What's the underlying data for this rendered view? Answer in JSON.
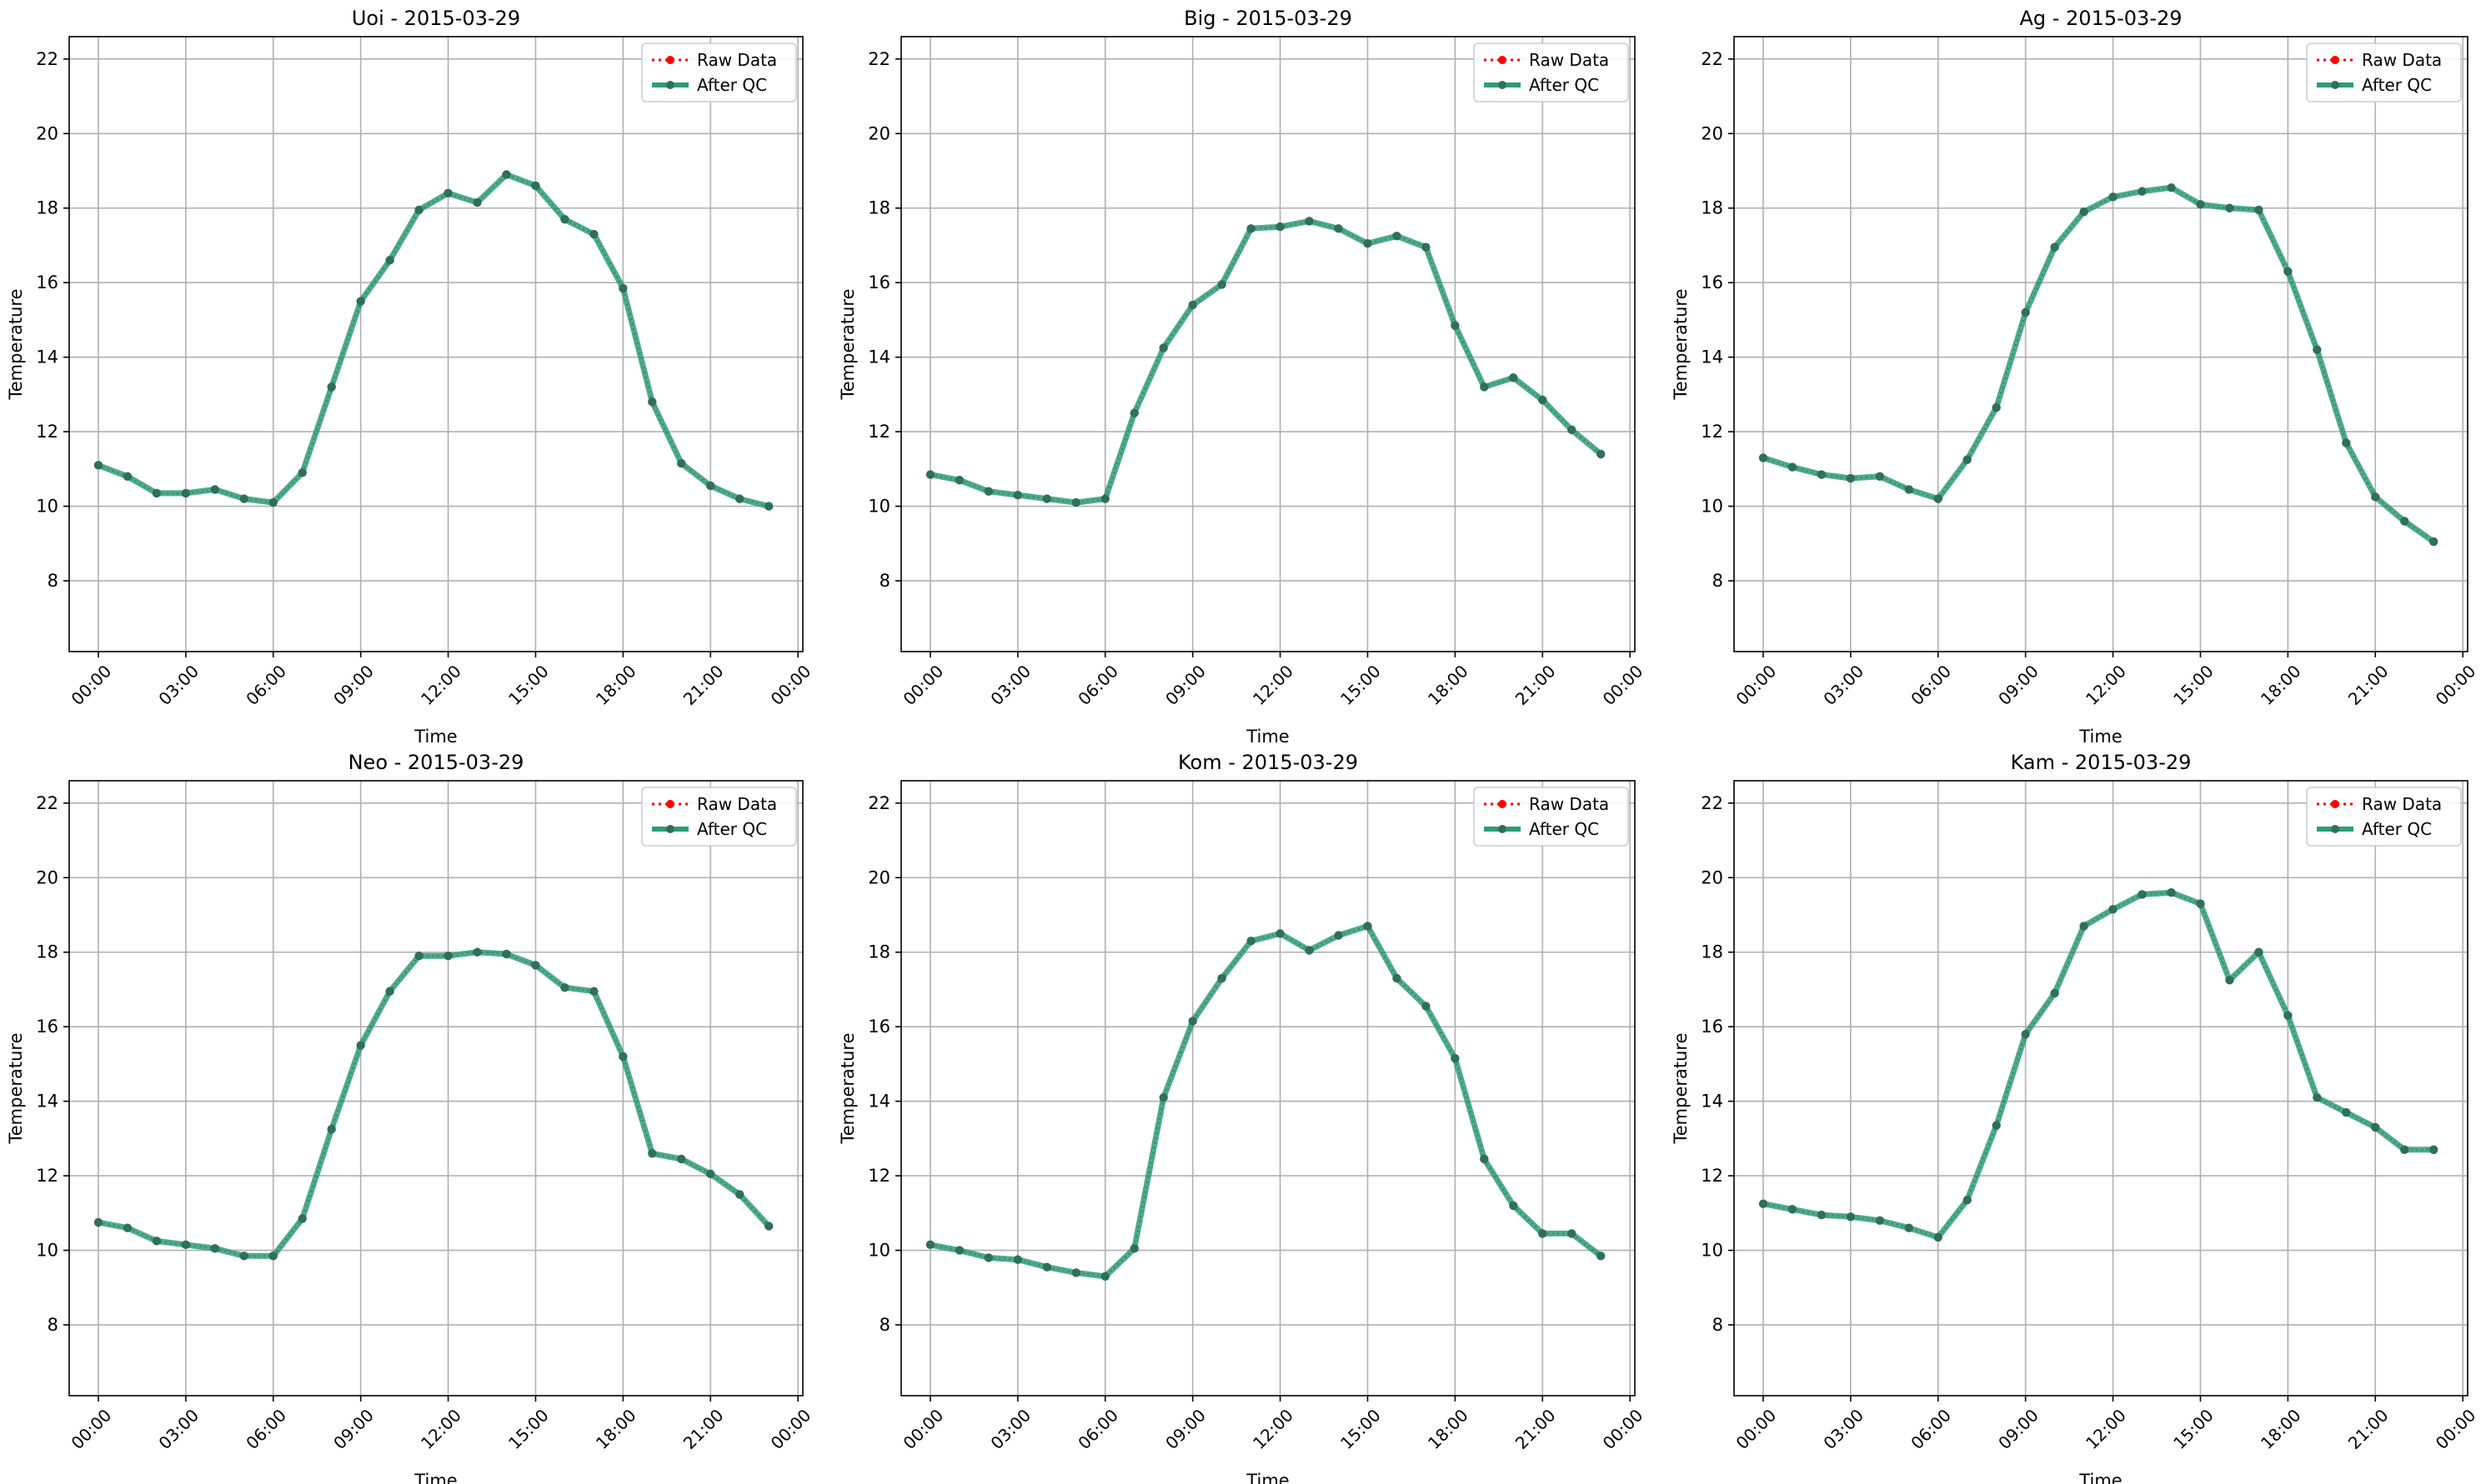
{
  "colors": {
    "raw": "#ff0000",
    "qc": "#2a9d78",
    "grid": "#b0b0b0",
    "axis": "#000000",
    "background": "#ffffff",
    "legend_border": "#cccccc"
  },
  "chart_data": [
    {
      "type": "line",
      "title": "Uoi - 2015-03-29",
      "xlabel": "Time",
      "ylabel": "Temperature",
      "xlim": [
        "2015-03-28 23:00",
        "2015-03-30 00:10"
      ],
      "ylim": [
        6.1,
        22.6
      ],
      "xtick_labels": [
        "00:00",
        "03:00",
        "06:00",
        "09:00",
        "12:00",
        "15:00",
        "18:00",
        "21:00",
        "00:00"
      ],
      "ytick_labels": [
        "8",
        "10",
        "12",
        "14",
        "16",
        "18",
        "20",
        "22"
      ],
      "grid": true,
      "legend": "top-right",
      "x": [
        "00:00",
        "01:00",
        "02:00",
        "03:00",
        "04:00",
        "05:00",
        "06:00",
        "07:00",
        "08:00",
        "09:00",
        "10:00",
        "11:00",
        "12:00",
        "13:00",
        "14:00",
        "15:00",
        "16:00",
        "17:00",
        "18:00",
        "19:00",
        "20:00",
        "21:00",
        "22:00",
        "23:00"
      ],
      "series": [
        {
          "name": "Raw Data",
          "values": [
            11.1,
            10.8,
            10.35,
            10.35,
            10.45,
            10.2,
            10.1,
            10.9,
            13.2,
            15.5,
            16.6,
            17.95,
            18.4,
            18.15,
            18.9,
            18.6,
            17.7,
            17.3,
            15.85,
            12.8,
            11.15,
            10.55,
            10.2,
            10.0
          ]
        },
        {
          "name": "After QC",
          "values": [
            11.1,
            10.8,
            10.35,
            10.35,
            10.45,
            10.2,
            10.1,
            10.9,
            13.2,
            15.5,
            16.6,
            17.95,
            18.4,
            18.15,
            18.9,
            18.6,
            17.7,
            17.3,
            15.85,
            12.8,
            11.15,
            10.55,
            10.2,
            10.0
          ]
        }
      ]
    },
    {
      "type": "line",
      "title": "Big - 2015-03-29",
      "xlabel": "Time",
      "ylabel": "Temperature",
      "xlim": [
        "2015-03-28 23:00",
        "2015-03-30 00:10"
      ],
      "ylim": [
        6.1,
        22.6
      ],
      "xtick_labels": [
        "00:00",
        "03:00",
        "06:00",
        "09:00",
        "12:00",
        "15:00",
        "18:00",
        "21:00",
        "00:00"
      ],
      "ytick_labels": [
        "8",
        "10",
        "12",
        "14",
        "16",
        "18",
        "20",
        "22"
      ],
      "grid": true,
      "legend": "top-right",
      "x": [
        "00:00",
        "01:00",
        "02:00",
        "03:00",
        "04:00",
        "05:00",
        "06:00",
        "07:00",
        "08:00",
        "09:00",
        "10:00",
        "11:00",
        "12:00",
        "13:00",
        "14:00",
        "15:00",
        "16:00",
        "17:00",
        "18:00",
        "19:00",
        "20:00",
        "21:00",
        "22:00",
        "23:00"
      ],
      "series": [
        {
          "name": "Raw Data",
          "values": [
            10.85,
            10.7,
            10.4,
            10.3,
            10.2,
            10.1,
            10.2,
            12.5,
            14.25,
            15.4,
            15.95,
            17.45,
            17.5,
            17.65,
            17.45,
            17.05,
            17.25,
            16.95,
            14.85,
            13.2,
            13.45,
            12.85,
            12.05,
            11.4
          ]
        },
        {
          "name": "After QC",
          "values": [
            10.85,
            10.7,
            10.4,
            10.3,
            10.2,
            10.1,
            10.2,
            12.5,
            14.25,
            15.4,
            15.95,
            17.45,
            17.5,
            17.65,
            17.45,
            17.05,
            17.25,
            16.95,
            14.85,
            13.2,
            13.45,
            12.85,
            12.05,
            11.4
          ]
        }
      ]
    },
    {
      "type": "line",
      "title": "Ag - 2015-03-29",
      "xlabel": "Time",
      "ylabel": "Temperature",
      "xlim": [
        "2015-03-28 23:00",
        "2015-03-30 00:10"
      ],
      "ylim": [
        6.1,
        22.6
      ],
      "xtick_labels": [
        "00:00",
        "03:00",
        "06:00",
        "09:00",
        "12:00",
        "15:00",
        "18:00",
        "21:00",
        "00:00"
      ],
      "ytick_labels": [
        "8",
        "10",
        "12",
        "14",
        "16",
        "18",
        "20",
        "22"
      ],
      "grid": true,
      "legend": "top-right",
      "x": [
        "00:00",
        "01:00",
        "02:00",
        "03:00",
        "04:00",
        "05:00",
        "06:00",
        "07:00",
        "08:00",
        "09:00",
        "10:00",
        "11:00",
        "12:00",
        "13:00",
        "14:00",
        "15:00",
        "16:00",
        "17:00",
        "18:00",
        "19:00",
        "20:00",
        "21:00",
        "22:00",
        "23:00"
      ],
      "series": [
        {
          "name": "Raw Data",
          "values": [
            11.3,
            11.05,
            10.85,
            10.75,
            10.8,
            10.45,
            10.2,
            11.25,
            12.65,
            15.2,
            16.95,
            17.9,
            18.3,
            18.45,
            18.55,
            18.1,
            18.0,
            17.95,
            16.3,
            14.2,
            11.7,
            10.25,
            9.6,
            9.05
          ]
        },
        {
          "name": "After QC",
          "values": [
            11.3,
            11.05,
            10.85,
            10.75,
            10.8,
            10.45,
            10.2,
            11.25,
            12.65,
            15.2,
            16.95,
            17.9,
            18.3,
            18.45,
            18.55,
            18.1,
            18.0,
            17.95,
            16.3,
            14.2,
            11.7,
            10.25,
            9.6,
            9.05
          ]
        }
      ]
    },
    {
      "type": "line",
      "title": "Neo - 2015-03-29",
      "xlabel": "Time",
      "ylabel": "Temperature",
      "xlim": [
        "2015-03-28 23:00",
        "2015-03-30 00:10"
      ],
      "ylim": [
        6.1,
        22.6
      ],
      "xtick_labels": [
        "00:00",
        "03:00",
        "06:00",
        "09:00",
        "12:00",
        "15:00",
        "18:00",
        "21:00",
        "00:00"
      ],
      "ytick_labels": [
        "8",
        "10",
        "12",
        "14",
        "16",
        "18",
        "20",
        "22"
      ],
      "grid": true,
      "legend": "top-right",
      "x": [
        "00:00",
        "01:00",
        "02:00",
        "03:00",
        "04:00",
        "05:00",
        "06:00",
        "07:00",
        "08:00",
        "09:00",
        "10:00",
        "11:00",
        "12:00",
        "13:00",
        "14:00",
        "15:00",
        "16:00",
        "17:00",
        "18:00",
        "19:00",
        "20:00",
        "21:00",
        "22:00",
        "23:00"
      ],
      "series": [
        {
          "name": "Raw Data",
          "values": [
            10.75,
            10.6,
            10.25,
            10.15,
            10.05,
            9.85,
            9.85,
            10.85,
            13.25,
            15.5,
            16.95,
            17.9,
            17.9,
            18.0,
            17.95,
            17.65,
            17.05,
            16.95,
            15.2,
            12.6,
            12.45,
            12.05,
            11.5,
            10.65
          ]
        },
        {
          "name": "After QC",
          "values": [
            10.75,
            10.6,
            10.25,
            10.15,
            10.05,
            9.85,
            9.85,
            10.85,
            13.25,
            15.5,
            16.95,
            17.9,
            17.9,
            18.0,
            17.95,
            17.65,
            17.05,
            16.95,
            15.2,
            12.6,
            12.45,
            12.05,
            11.5,
            10.65
          ]
        }
      ]
    },
    {
      "type": "line",
      "title": "Kom - 2015-03-29",
      "xlabel": "Time",
      "ylabel": "Temperature",
      "xlim": [
        "2015-03-28 23:00",
        "2015-03-30 00:10"
      ],
      "ylim": [
        6.1,
        22.6
      ],
      "xtick_labels": [
        "00:00",
        "03:00",
        "06:00",
        "09:00",
        "12:00",
        "15:00",
        "18:00",
        "21:00",
        "00:00"
      ],
      "ytick_labels": [
        "8",
        "10",
        "12",
        "14",
        "16",
        "18",
        "20",
        "22"
      ],
      "grid": true,
      "legend": "top-right",
      "x": [
        "00:00",
        "01:00",
        "02:00",
        "03:00",
        "04:00",
        "05:00",
        "06:00",
        "07:00",
        "08:00",
        "09:00",
        "10:00",
        "11:00",
        "12:00",
        "13:00",
        "14:00",
        "15:00",
        "16:00",
        "17:00",
        "18:00",
        "19:00",
        "20:00",
        "21:00",
        "22:00",
        "23:00"
      ],
      "series": [
        {
          "name": "Raw Data",
          "values": [
            10.15,
            10.0,
            9.8,
            9.75,
            9.55,
            9.4,
            9.3,
            10.05,
            14.1,
            16.15,
            17.3,
            18.3,
            18.5,
            18.05,
            18.45,
            18.7,
            17.3,
            16.55,
            15.15,
            12.45,
            11.2,
            10.45,
            10.45,
            9.85
          ]
        },
        {
          "name": "After QC",
          "values": [
            10.15,
            10.0,
            9.8,
            9.75,
            9.55,
            9.4,
            9.3,
            10.05,
            14.1,
            16.15,
            17.3,
            18.3,
            18.5,
            18.05,
            18.45,
            18.7,
            17.3,
            16.55,
            15.15,
            12.45,
            11.2,
            10.45,
            10.45,
            9.85
          ]
        }
      ]
    },
    {
      "type": "line",
      "title": "Kam - 2015-03-29",
      "xlabel": "Time",
      "ylabel": "Temperature",
      "xlim": [
        "2015-03-28 23:00",
        "2015-03-30 00:10"
      ],
      "ylim": [
        6.1,
        22.6
      ],
      "xtick_labels": [
        "00:00",
        "03:00",
        "06:00",
        "09:00",
        "12:00",
        "15:00",
        "18:00",
        "21:00",
        "00:00"
      ],
      "ytick_labels": [
        "8",
        "10",
        "12",
        "14",
        "16",
        "18",
        "20",
        "22"
      ],
      "grid": true,
      "legend": "top-right",
      "x": [
        "00:00",
        "01:00",
        "02:00",
        "03:00",
        "04:00",
        "05:00",
        "06:00",
        "07:00",
        "08:00",
        "09:00",
        "10:00",
        "11:00",
        "12:00",
        "13:00",
        "14:00",
        "15:00",
        "16:00",
        "17:00",
        "18:00",
        "19:00",
        "20:00",
        "21:00",
        "22:00",
        "23:00"
      ],
      "series": [
        {
          "name": "Raw Data",
          "values": [
            11.25,
            11.1,
            10.95,
            10.9,
            10.8,
            10.6,
            10.35,
            11.35,
            13.35,
            15.8,
            16.9,
            18.7,
            19.15,
            19.55,
            19.6,
            19.3,
            17.25,
            18.0,
            16.3,
            14.1,
            13.7,
            13.3,
            12.7,
            12.7
          ]
        },
        {
          "name": "After QC",
          "values": [
            11.25,
            11.1,
            10.95,
            10.9,
            10.8,
            10.6,
            10.35,
            11.35,
            13.35,
            15.8,
            16.9,
            18.7,
            19.15,
            19.55,
            19.6,
            19.3,
            17.25,
            18.0,
            16.3,
            14.1,
            13.7,
            13.3,
            12.7,
            12.7
          ]
        }
      ]
    }
  ]
}
